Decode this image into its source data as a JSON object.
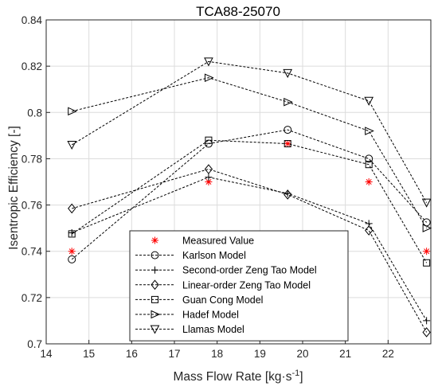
{
  "chart_data": {
    "type": "line",
    "title": "TCA88-25070",
    "xlabel": "Mass Flow Rate [kg·s",
    "xlabel_superscript": "-1",
    "xlabel_suffix": "]",
    "ylabel": "Isentropic Efficiency [-]",
    "xlim": [
      14,
      23
    ],
    "ylim": [
      0.7,
      0.84
    ],
    "x_ticks": [
      "14",
      "15",
      "16",
      "17",
      "18",
      "19",
      "20",
      "21",
      "22"
    ],
    "y_ticks": [
      "0.7",
      "0.72",
      "0.74",
      "0.76",
      "0.78",
      "0.8",
      "0.82",
      "0.84"
    ],
    "grid": true,
    "legend_position": "bottom-center",
    "series": [
      {
        "name": "Measured Value",
        "marker": "asterisk",
        "color": "#ff0000",
        "line": false,
        "x": [
          14.6,
          17.8,
          19.65,
          21.55,
          22.9
        ],
        "y": [
          0.74,
          0.77,
          0.7865,
          0.77,
          0.74
        ]
      },
      {
        "name": "Karlson Model",
        "marker": "circle",
        "color": "#000000",
        "line": true,
        "x": [
          14.6,
          17.8,
          19.65,
          21.55,
          22.9
        ],
        "y": [
          0.7365,
          0.7865,
          0.7925,
          0.78,
          0.7525
        ]
      },
      {
        "name": "Second-order Zeng Tao Model",
        "marker": "plus",
        "color": "#000000",
        "line": true,
        "x": [
          14.6,
          17.8,
          19.65,
          21.55,
          22.9
        ],
        "y": [
          0.748,
          0.772,
          0.765,
          0.752,
          0.71
        ]
      },
      {
        "name": "Linear-order Zeng Tao Model",
        "marker": "diamond",
        "color": "#000000",
        "line": true,
        "x": [
          14.6,
          17.8,
          19.65,
          21.55,
          22.9
        ],
        "y": [
          0.7585,
          0.7755,
          0.7645,
          0.749,
          0.705
        ]
      },
      {
        "name": "Guan Cong Model",
        "marker": "square",
        "color": "#000000",
        "line": true,
        "x": [
          14.6,
          17.8,
          19.65,
          21.55,
          22.9
        ],
        "y": [
          0.7475,
          0.788,
          0.7865,
          0.7775,
          0.735
        ]
      },
      {
        "name": "Hadef Model",
        "marker": "triangle-right",
        "color": "#000000",
        "line": true,
        "x": [
          14.6,
          17.8,
          19.65,
          21.55,
          22.9
        ],
        "y": [
          0.8005,
          0.815,
          0.8045,
          0.792,
          0.75
        ]
      },
      {
        "name": "Llamas Model",
        "marker": "triangle-down",
        "color": "#000000",
        "line": true,
        "x": [
          14.6,
          17.8,
          19.65,
          21.55,
          22.9
        ],
        "y": [
          0.786,
          0.822,
          0.817,
          0.805,
          0.761
        ]
      }
    ]
  }
}
